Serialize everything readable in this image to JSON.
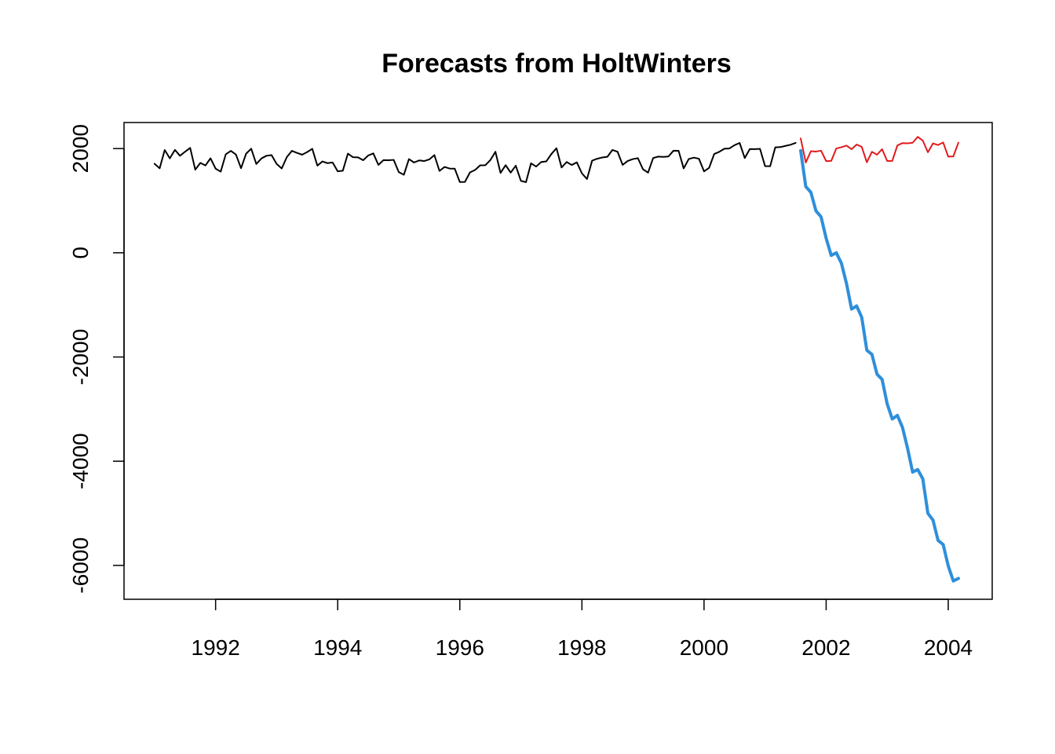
{
  "chart_data": {
    "type": "line",
    "title": "Forecasts from HoltWinters",
    "xlabel": "",
    "ylabel": "",
    "xlim": [
      1990.5,
      2004.72
    ],
    "ylim": [
      -6650,
      2500
    ],
    "x_ticks": [
      1992,
      1994,
      1996,
      1998,
      2000,
      2002,
      2004
    ],
    "x_tick_labels": [
      "1992",
      "1994",
      "1996",
      "1998",
      "2000",
      "2002",
      "2004"
    ],
    "y_ticks": [
      2000,
      0,
      -2000,
      -4000,
      -6000
    ],
    "y_tick_labels": [
      "2000",
      "0",
      "-2000",
      "-4000",
      "-6000"
    ],
    "grid": false,
    "legend": "none",
    "x_start": 1991.0,
    "x_step": 0.0833333,
    "series": [
      {
        "color": "#000000",
        "style": "solid",
        "values": [
          1709,
          1621,
          1973,
          1812,
          1975,
          1862,
          1940,
          2013,
          1596,
          1725,
          1676,
          1814,
          1615,
          1557,
          1891,
          1956,
          1885,
          1623,
          1903,
          1997,
          1704,
          1810,
          1862,
          1875,
          1705,
          1619,
          1837,
          1957,
          1917,
          1882,
          1933,
          1996,
          1673,
          1753,
          1720,
          1734,
          1563,
          1574,
          1903,
          1834,
          1831,
          1776,
          1868,
          1907,
          1686,
          1779,
          1776,
          1783,
          1548,
          1497,
          1798,
          1733,
          1772,
          1761,
          1792,
          1875,
          1571,
          1647,
          1617,
          1615,
          1358,
          1360,
          1543,
          1590,
          1679,
          1680,
          1779,
          1939,
          1533,
          1682,
          1539,
          1672,
          1381,
          1355,
          1717,
          1655,
          1743,
          1754,
          1896,
          2007,
          1637,
          1742,
          1685,
          1736,
          1524,
          1416,
          1768,
          1805,
          1830,
          1842,
          1974,
          1940,
          1687,
          1762,
          1798,
          1816,
          1603,
          1538,
          1819,
          1846,
          1840,
          1848,
          1960,
          1957,
          1619,
          1800,
          1826,
          1805,
          1563,
          1631,
          1896,
          1938,
          1997,
          2003,
          2066,
          2108,
          1818,
          1991,
          1989,
          1995,
          1663,
          1662,
          2023,
          2028,
          2052,
          2073,
          2109
        ]
      },
      {
        "color": "#e31a1c",
        "style": "solid",
        "x_start": 2001.5833,
        "values": [
          2195,
          1732,
          1950,
          1943,
          1960,
          1760,
          1764,
          2002,
          2026,
          2058,
          1988,
          2078,
          2032,
          1737,
          1938,
          1882,
          1988,
          1762,
          1764,
          2060,
          2105,
          2100,
          2112,
          2225,
          2153,
          1929,
          2099,
          2068,
          2117,
          1846,
          1850,
          2115
        ]
      },
      {
        "color": "#2e8fdb",
        "style": "thick",
        "x_start": 2001.5833,
        "values": [
          1960,
          1270,
          1160,
          805,
          690,
          280,
          -50,
          0,
          -200,
          -590,
          -1080,
          -1020,
          -1240,
          -1870,
          -1950,
          -2330,
          -2430,
          -2900,
          -3190,
          -3120,
          -3350,
          -3750,
          -4210,
          -4160,
          -4340,
          -5000,
          -5130,
          -5520,
          -5600,
          -6010,
          -6300,
          -6250
        ]
      }
    ]
  }
}
